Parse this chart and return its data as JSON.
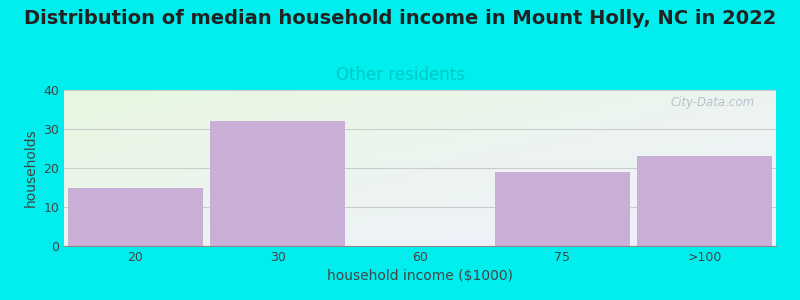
{
  "title": "Distribution of median household income in Mount Holly, NC in 2022",
  "subtitle": "Other residents",
  "categories": [
    "20",
    "30",
    "60",
    "75",
    ">100"
  ],
  "values": [
    15,
    32,
    0,
    19,
    23
  ],
  "bar_color": "#c9aed6",
  "xlabel": "household income ($1000)",
  "ylabel": "households",
  "ylim": [
    0,
    40
  ],
  "yticks": [
    0,
    10,
    20,
    30,
    40
  ],
  "title_fontsize": 14,
  "subtitle_fontsize": 12,
  "subtitle_color": "#00c8c8",
  "axis_label_fontsize": 10,
  "tick_fontsize": 9,
  "background_color": "#00EEEE",
  "watermark": "City-Data.com",
  "bar_width": 0.95,
  "n_bars": 5,
  "gradient_colors": [
    "#e8f8e0",
    "#f0f0ff"
  ],
  "grid_color": "#cccccc",
  "spine_color": "#888888"
}
